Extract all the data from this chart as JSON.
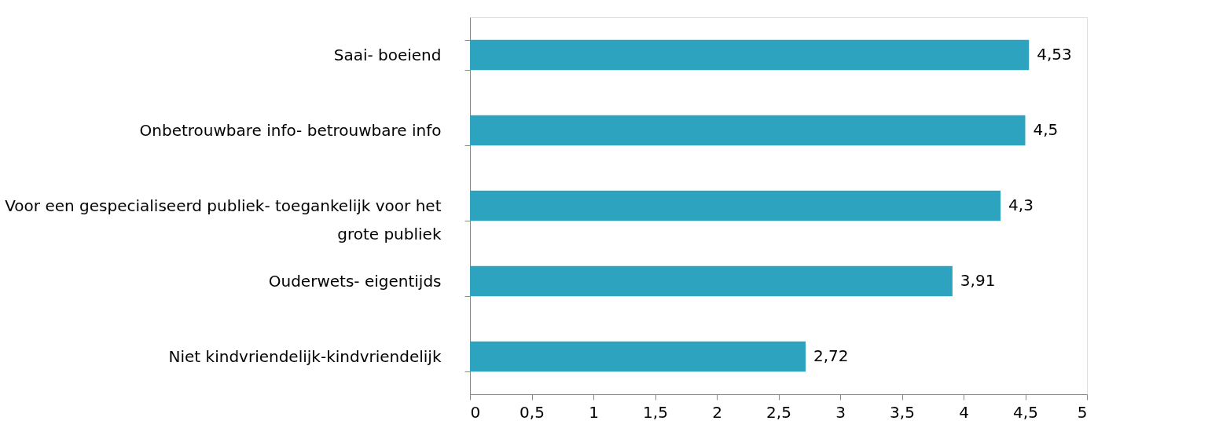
{
  "chart_data": {
    "type": "bar",
    "orientation": "horizontal",
    "categories": [
      "Saai- boeiend",
      "Onbetrouwbare info- betrouwbare info",
      "Voor een gespecialiseerd publiek- toegankelijk voor het grote publiek",
      "Ouderwets- eigentijds",
      "Niet kindvriendelijk-kindvriendelijk"
    ],
    "values": [
      4.53,
      4.5,
      4.3,
      3.91,
      2.72
    ],
    "value_labels": [
      "4,53",
      "4,5",
      "4,3",
      "3,91",
      "2,72"
    ],
    "color": "#2ea3c0",
    "xlim": [
      0,
      5
    ],
    "xticks": [
      0,
      {
        "value": 0.5,
        "label": "0,5"
      },
      1,
      {
        "value": 1.5,
        "label": "1,5"
      },
      2,
      {
        "value": 2.5,
        "label": "2,5"
      },
      3,
      {
        "value": 3.5,
        "label": "3,5"
      },
      4,
      {
        "value": 4.5,
        "label": "4,5"
      },
      5
    ],
    "grid": false
  }
}
